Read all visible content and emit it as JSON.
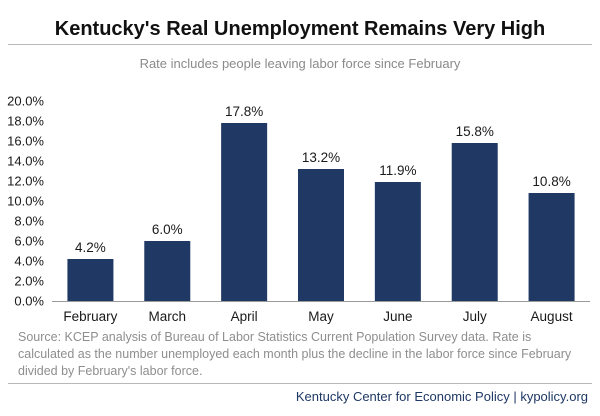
{
  "title": "Kentucky's Real Unemployment Remains Very High",
  "subtitle": "Rate includes people leaving labor force since February",
  "chart_data": {
    "type": "bar",
    "title": "Kentucky's Real Unemployment Remains Very High",
    "subtitle": "Rate includes people leaving labor force since February",
    "categories": [
      "February",
      "March",
      "April",
      "May",
      "June",
      "July",
      "August"
    ],
    "values": [
      4.2,
      6.0,
      17.8,
      13.2,
      11.9,
      15.8,
      10.8
    ],
    "data_labels": [
      "4.2%",
      "6.0%",
      "17.8%",
      "13.2%",
      "11.9%",
      "15.8%",
      "10.8%"
    ],
    "y_ticks": [
      "0.0%",
      "2.0%",
      "4.0%",
      "6.0%",
      "8.0%",
      "10.0%",
      "12.0%",
      "14.0%",
      "16.0%",
      "18.0%",
      "20.0%"
    ],
    "xlabel": "",
    "ylabel": "",
    "ylim": [
      0,
      20
    ],
    "grid": false,
    "legend": "none",
    "bar_color": "#1f3864"
  },
  "source_note": "Source: KCEP analysis of Bureau of Labor Statistics Current Population Survey data. Rate is calculated as the number unemployed each month plus the decline in the labor force since February divided by February's labor force.",
  "footer": "Kentucky Center for Economic Policy | kypolicy.org"
}
